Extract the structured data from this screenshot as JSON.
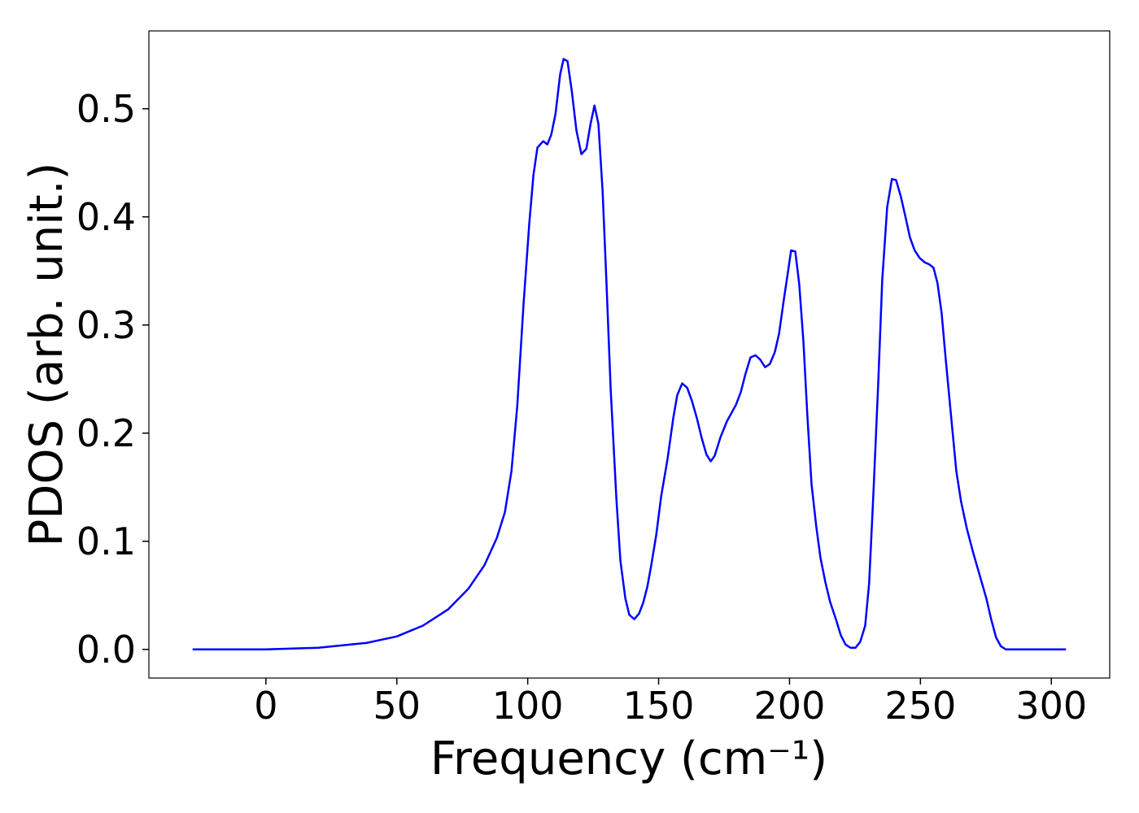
{
  "chart_data": {
    "type": "line",
    "xlabel": "Frequency (cm⁻¹)",
    "ylabel": "PDOS (arb. unit.)",
    "color": "#0000ff",
    "x": [
      -28,
      0,
      20,
      38.5,
      50,
      60,
      69.6,
      77.3,
      83.5,
      88.2,
      91.3,
      93.8,
      96,
      98.4,
      100.6,
      102.2,
      103.7,
      105.9,
      107.5,
      109,
      110.6,
      112.4,
      113.7,
      115.2,
      116.8,
      118.6,
      120.5,
      122.4,
      124,
      125.5,
      127,
      128.6,
      130.1,
      131.7,
      133.9,
      135.4,
      137.3,
      138.8,
      140.7,
      142.5,
      144.1,
      145.7,
      147.2,
      149.1,
      151,
      153.4,
      155.6,
      157.1,
      159,
      160.9,
      162.7,
      164.6,
      166.5,
      168.3,
      169.9,
      171.4,
      173.6,
      176.1,
      179.5,
      181.4,
      183.2,
      185.1,
      187,
      188.8,
      190.7,
      192.5,
      194.4,
      196,
      197.8,
      199.4,
      200.6,
      202.2,
      203.7,
      205.3,
      206.8,
      208.4,
      210.2,
      211.8,
      213.7,
      215.5,
      217.7,
      219.6,
      221.4,
      223.3,
      225.2,
      227,
      228.9,
      230.4,
      232,
      233.9,
      235.4,
      237.3,
      239.1,
      240.7,
      242.5,
      244.1,
      246,
      247.8,
      249.7,
      251.6,
      253.4,
      255,
      256.5,
      258.1,
      259.6,
      261.5,
      263.7,
      265.5,
      267.7,
      270.2,
      272.7,
      275.2,
      277,
      278.9,
      280.7,
      282.6,
      305.6
    ],
    "values": [
      0,
      0,
      0.0015,
      0.006,
      0.012,
      0.022,
      0.037,
      0.056,
      0.078,
      0.103,
      0.127,
      0.165,
      0.225,
      0.319,
      0.394,
      0.439,
      0.464,
      0.47,
      0.467,
      0.476,
      0.495,
      0.532,
      0.546,
      0.544,
      0.517,
      0.48,
      0.458,
      0.463,
      0.486,
      0.503,
      0.486,
      0.424,
      0.338,
      0.24,
      0.138,
      0.082,
      0.047,
      0.032,
      0.028,
      0.033,
      0.043,
      0.058,
      0.078,
      0.106,
      0.142,
      0.176,
      0.214,
      0.235,
      0.246,
      0.242,
      0.23,
      0.214,
      0.195,
      0.18,
      0.174,
      0.179,
      0.196,
      0.211,
      0.226,
      0.238,
      0.255,
      0.27,
      0.272,
      0.268,
      0.261,
      0.264,
      0.275,
      0.292,
      0.323,
      0.349,
      0.369,
      0.368,
      0.338,
      0.285,
      0.217,
      0.153,
      0.114,
      0.085,
      0.062,
      0.044,
      0.028,
      0.013,
      0.0045,
      0.0015,
      0.0015,
      0.007,
      0.022,
      0.061,
      0.142,
      0.247,
      0.341,
      0.409,
      0.435,
      0.434,
      0.419,
      0.402,
      0.381,
      0.369,
      0.362,
      0.358,
      0.356,
      0.353,
      0.339,
      0.311,
      0.27,
      0.221,
      0.165,
      0.137,
      0.112,
      0.089,
      0.068,
      0.047,
      0.028,
      0.011,
      0.003,
      0,
      0
    ],
    "xlim": [
      -44.7,
      322.3
    ],
    "xticks": [
      0,
      50,
      100,
      150,
      200,
      250,
      300
    ],
    "ylim": [
      -0.0265,
      0.572
    ],
    "yticks": [
      {
        "value": 0,
        "label": "0.0"
      },
      0.1,
      0.2,
      0.3,
      0.4,
      0.5
    ]
  }
}
